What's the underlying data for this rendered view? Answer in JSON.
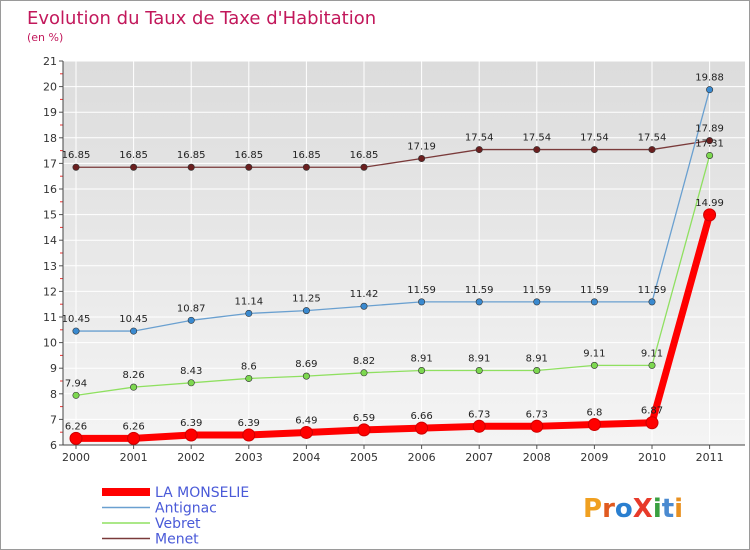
{
  "chart_data": {
    "type": "line",
    "title": "Evolution du Taux de Taxe d'Habitation",
    "subtitle": "(en %)",
    "x": [
      "2000",
      "2001",
      "2002",
      "2003",
      "2004",
      "2005",
      "2006",
      "2007",
      "2008",
      "2009",
      "2010",
      "2011"
    ],
    "ylim": [
      6,
      21
    ],
    "yticks": [
      6,
      7,
      8,
      9,
      10,
      11,
      12,
      13,
      14,
      15,
      16,
      17,
      18,
      19,
      20,
      21
    ],
    "grid": true,
    "legend_position": "bottom-left",
    "series": [
      {
        "name": "Menet",
        "color": "#6b1f1f",
        "line_color": "#7a3a3a",
        "emphasis": false,
        "values": [
          16.85,
          16.85,
          16.85,
          16.85,
          16.85,
          16.85,
          17.19,
          17.54,
          17.54,
          17.54,
          17.54,
          17.89
        ],
        "labels": [
          "16.85",
          "16.85",
          "16.85",
          "16.85",
          "16.85",
          "16.85",
          "17.19",
          "17.54",
          "17.54",
          "17.54",
          "17.54",
          "17.89"
        ]
      },
      {
        "name": "Vebret",
        "color": "#7dd850",
        "line_color": "#8fe060",
        "emphasis": false,
        "values": [
          7.94,
          8.26,
          8.43,
          8.6,
          8.69,
          8.82,
          8.91,
          8.91,
          8.91,
          9.11,
          9.11,
          17.31
        ],
        "labels": [
          "7.94",
          "8.26",
          "8.43",
          "8.6",
          "8.69",
          "8.82",
          "8.91",
          "8.91",
          "8.91",
          "9.11",
          "9.11",
          "17.31"
        ]
      },
      {
        "name": "Antignac",
        "color": "#3a8ad0",
        "line_color": "#6aa0d0",
        "emphasis": false,
        "values": [
          10.45,
          10.45,
          10.87,
          11.14,
          11.25,
          11.42,
          11.59,
          11.59,
          11.59,
          11.59,
          11.59,
          19.88
        ],
        "labels": [
          "10.45",
          "10.45",
          "10.87",
          "11.14",
          "11.25",
          "11.42",
          "11.59",
          "11.59",
          "11.59",
          "11.59",
          "11.59",
          "19.88"
        ]
      },
      {
        "name": "LA MONSELIE",
        "color": "#ff0000",
        "line_color": "#ff0000",
        "emphasis": true,
        "values": [
          6.26,
          6.26,
          6.39,
          6.39,
          6.49,
          6.59,
          6.66,
          6.73,
          6.73,
          6.8,
          6.87,
          14.99
        ],
        "labels": [
          "6.26",
          "6.26",
          "6.39",
          "6.39",
          "6.49",
          "6.59",
          "6.66",
          "6.73",
          "6.73",
          "6.8",
          "6.87",
          "14.99"
        ]
      }
    ],
    "legend_order": [
      "LA MONSELIE",
      "Antignac",
      "Vebret",
      "Menet"
    ]
  },
  "brand": {
    "logo_text": "ProXiti",
    "letter_colors": [
      "#f0a020",
      "#e05a20",
      "#2a7fd0",
      "#e83a2a",
      "#3aa040",
      "#4a8ad0",
      "#e89020"
    ]
  }
}
